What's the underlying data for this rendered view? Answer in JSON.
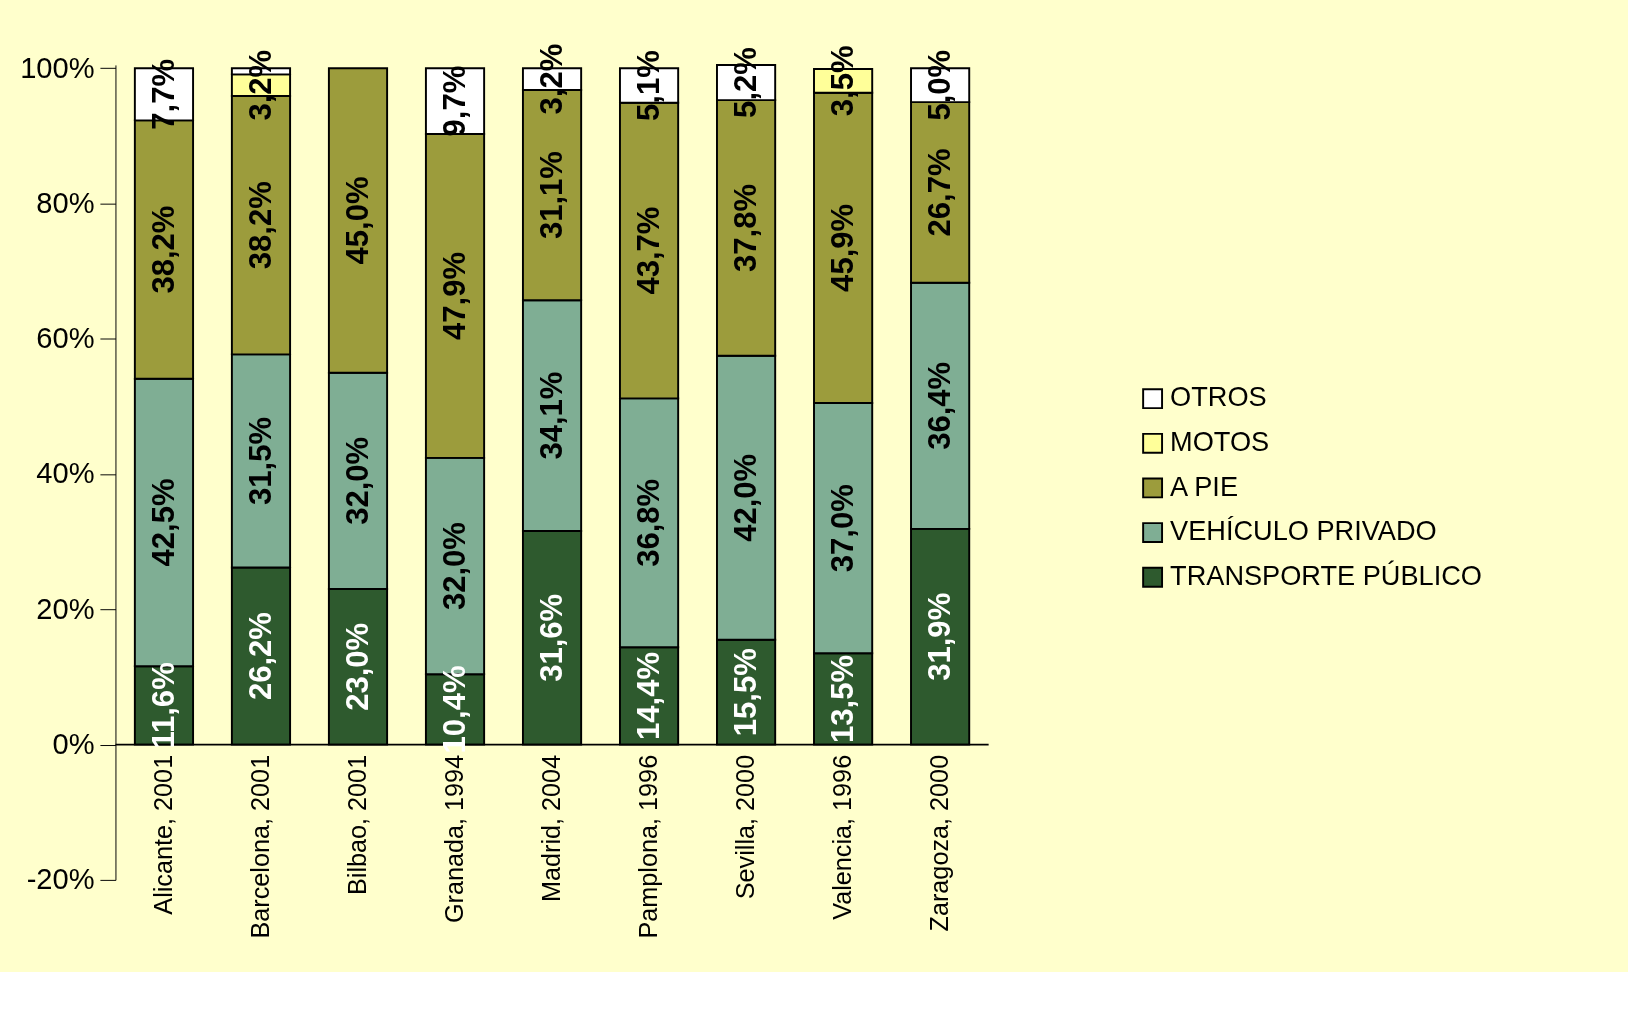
{
  "chart_data": {
    "type": "bar",
    "stacked": true,
    "categories": [
      "Alicante, 2001",
      "Barcelona, 2001",
      "Bilbao, 2001",
      "Granada, 1994",
      "Madrid, 2004",
      "Pamplona, 1996",
      "Sevilla, 2000",
      "Valencia, 1996",
      "Zaragoza, 2000"
    ],
    "series": [
      {
        "name": "TRANSPORTE PÚBLICO",
        "color": "#2e5a2e",
        "values": [
          11.6,
          26.2,
          23.0,
          10.4,
          31.6,
          14.4,
          15.5,
          13.5,
          31.9
        ],
        "value_labels": [
          "11,6%",
          "26,2%",
          "23,0%",
          "10,4%",
          "31,6%",
          "14,4%",
          "15,5%",
          "13,5%",
          "31,9%"
        ]
      },
      {
        "name": "VEHÍCULO PRIVADO",
        "color": "#7fae94",
        "values": [
          42.5,
          31.5,
          32.0,
          32.0,
          34.1,
          36.8,
          42.0,
          37.0,
          36.4
        ],
        "value_labels": [
          "42,5%",
          "31,5%",
          "32,0%",
          "32,0%",
          "34,1%",
          "36,8%",
          "42,0%",
          "37,0%",
          "36,4%"
        ]
      },
      {
        "name": "A PIE",
        "color": "#9c9c3c",
        "values": [
          38.2,
          38.2,
          45.0,
          47.9,
          31.1,
          43.7,
          37.8,
          45.9,
          26.7
        ],
        "value_labels": [
          "38,2%",
          "38,2%",
          "45,0%",
          "47,9%",
          "31,1%",
          "43,7%",
          "37,8%",
          "45,9%",
          "26,7%"
        ]
      },
      {
        "name": "MOTOS",
        "color": "#ffff99",
        "values": [
          null,
          3.2,
          null,
          null,
          null,
          null,
          null,
          3.5,
          null
        ],
        "value_labels": [
          null,
          "3,2%",
          null,
          null,
          null,
          null,
          null,
          "3,5%",
          null
        ]
      },
      {
        "name": "OTROS",
        "color": "#ffffff",
        "values": [
          7.7,
          0.9,
          null,
          9.7,
          3.2,
          5.1,
          5.2,
          null,
          5.0
        ],
        "value_labels": [
          "7,7%",
          null,
          null,
          "9,7%",
          "3,2%",
          "5,1%",
          "5,2%",
          null,
          "5,0%"
        ]
      }
    ],
    "ylim": [
      -20,
      100.5
    ],
    "yticks": [
      {
        "value": -20,
        "label": "-20%"
      },
      {
        "value": 0,
        "label": "0%"
      },
      {
        "value": 20,
        "label": "20%"
      },
      {
        "value": 40,
        "label": "40%"
      },
      {
        "value": 60,
        "label": "60%"
      },
      {
        "value": 80,
        "label": "80%"
      },
      {
        "value": 100,
        "label": "100%"
      }
    ],
    "legend": "right",
    "grid": false
  }
}
